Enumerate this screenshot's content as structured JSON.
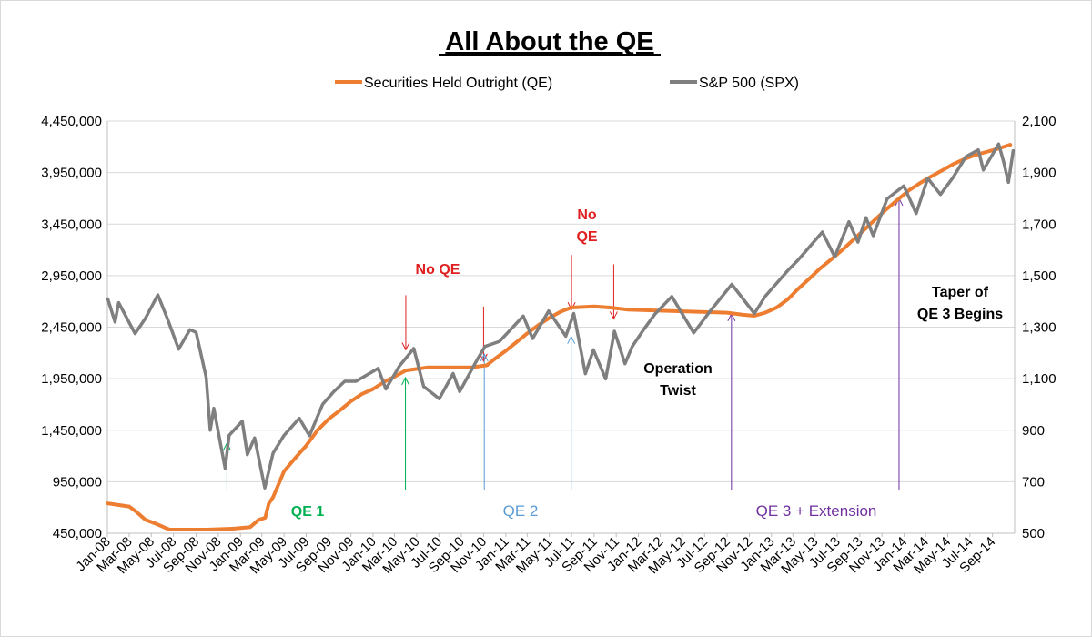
{
  "chart_data": {
    "type": "line",
    "title": "All About the QE",
    "xlabel": "",
    "ylabel": "",
    "y_left_ticks": [
      "450,000",
      "950,000",
      "1,450,000",
      "1,950,000",
      "2,450,000",
      "2,950,000",
      "3,450,000",
      "3,950,000",
      "4,450,000"
    ],
    "y_right_ticks": [
      "500",
      "700",
      "900",
      "1,100",
      "1,300",
      "1,500",
      "1,700",
      "1,900",
      "2,100"
    ],
    "ylim_left": [
      450000,
      4450000
    ],
    "ylim_right": [
      500,
      2100
    ],
    "x_ticks": [
      "Jan-08",
      "Mar-08",
      "May-08",
      "Jul-08",
      "Sep-08",
      "Nov-08",
      "Jan-09",
      "Mar-09",
      "May-09",
      "Jul-09",
      "Sep-09",
      "Nov-09",
      "Jan-10",
      "Mar-10",
      "May-10",
      "Jul-10",
      "Sep-10",
      "Nov-10",
      "Jan-11",
      "Mar-11",
      "May-11",
      "Jul-11",
      "Sep-11",
      "Nov-11",
      "Jan-12",
      "Mar-12",
      "May-12",
      "Jul-12",
      "Sep-12",
      "Nov-12",
      "Jan-13",
      "Mar-13",
      "May-13",
      "Jul-13",
      "Sep-13",
      "Nov-13",
      "Jan-14",
      "Mar-14",
      "May-14",
      "Jul-14",
      "Sep-14"
    ],
    "legend_position": "top",
    "grid": "horizontal",
    "series": [
      {
        "name": "Securities Held Outright (QE)",
        "axis": "left",
        "color": "#ED7D31",
        "points": [
          [
            "2008-01-02",
            740000
          ],
          [
            "2008-03-01",
            710000
          ],
          [
            "2008-03-20",
            660000
          ],
          [
            "2008-04-15",
            580000
          ],
          [
            "2008-05-15",
            540000
          ],
          [
            "2008-06-20",
            485000
          ],
          [
            "2008-10-01",
            485000
          ],
          [
            "2008-12-15",
            495000
          ],
          [
            "2009-01-28",
            510000
          ],
          [
            "2009-02-20",
            580000
          ],
          [
            "2009-03-10",
            600000
          ],
          [
            "2009-03-20",
            740000
          ],
          [
            "2009-04-01",
            800000
          ],
          [
            "2009-05-01",
            1050000
          ],
          [
            "2009-06-01",
            1180000
          ],
          [
            "2009-07-01",
            1300000
          ],
          [
            "2009-08-01",
            1450000
          ],
          [
            "2009-09-01",
            1560000
          ],
          [
            "2009-10-01",
            1640000
          ],
          [
            "2009-11-01",
            1730000
          ],
          [
            "2009-12-01",
            1800000
          ],
          [
            "2010-01-01",
            1850000
          ],
          [
            "2010-02-01",
            1920000
          ],
          [
            "2010-03-01",
            1970000
          ],
          [
            "2010-04-01",
            2030000
          ],
          [
            "2010-06-01",
            2060000
          ],
          [
            "2010-08-01",
            2060000
          ],
          [
            "2010-10-01",
            2060000
          ],
          [
            "2010-11-10",
            2080000
          ],
          [
            "2010-12-01",
            2140000
          ],
          [
            "2011-01-01",
            2220000
          ],
          [
            "2011-02-01",
            2310000
          ],
          [
            "2011-03-01",
            2390000
          ],
          [
            "2011-04-01",
            2470000
          ],
          [
            "2011-05-01",
            2540000
          ],
          [
            "2011-06-01",
            2600000
          ],
          [
            "2011-06-30",
            2640000
          ],
          [
            "2011-09-01",
            2650000
          ],
          [
            "2011-10-15",
            2640000
          ],
          [
            "2011-12-01",
            2620000
          ],
          [
            "2012-03-01",
            2610000
          ],
          [
            "2012-06-01",
            2600000
          ],
          [
            "2012-09-01",
            2590000
          ],
          [
            "2012-10-15",
            2570000
          ],
          [
            "2012-11-15",
            2560000
          ],
          [
            "2012-12-15",
            2590000
          ],
          [
            "2013-01-15",
            2640000
          ],
          [
            "2013-02-15",
            2720000
          ],
          [
            "2013-03-15",
            2820000
          ],
          [
            "2013-04-15",
            2920000
          ],
          [
            "2013-05-15",
            3020000
          ],
          [
            "2013-06-15",
            3110000
          ],
          [
            "2013-07-15",
            3200000
          ],
          [
            "2013-08-15",
            3300000
          ],
          [
            "2013-09-15",
            3400000
          ],
          [
            "2013-10-15",
            3500000
          ],
          [
            "2013-11-15",
            3600000
          ],
          [
            "2013-12-15",
            3690000
          ],
          [
            "2014-01-15",
            3780000
          ],
          [
            "2014-02-15",
            3850000
          ],
          [
            "2014-03-15",
            3910000
          ],
          [
            "2014-04-15",
            3970000
          ],
          [
            "2014-05-15",
            4030000
          ],
          [
            "2014-06-15",
            4080000
          ],
          [
            "2014-07-15",
            4120000
          ],
          [
            "2014-08-15",
            4150000
          ],
          [
            "2014-09-15",
            4180000
          ],
          [
            "2014-10-20",
            4220000
          ]
        ]
      },
      {
        "name": "S&P 500 (SPX)",
        "axis": "right",
        "color": "#7F7F7F",
        "points": [
          [
            "2008-01-02",
            1410
          ],
          [
            "2008-01-22",
            1320
          ],
          [
            "2008-02-01",
            1395
          ],
          [
            "2008-03-17",
            1275
          ],
          [
            "2008-04-15",
            1335
          ],
          [
            "2008-05-19",
            1425
          ],
          [
            "2008-06-15",
            1330
          ],
          [
            "2008-07-15",
            1215
          ],
          [
            "2008-08-15",
            1290
          ],
          [
            "2008-09-01",
            1280
          ],
          [
            "2008-09-29",
            1105
          ],
          [
            "2008-10-10",
            900
          ],
          [
            "2008-10-20",
            985
          ],
          [
            "2008-11-20",
            752
          ],
          [
            "2008-12-01",
            880
          ],
          [
            "2009-01-06",
            935
          ],
          [
            "2009-01-20",
            805
          ],
          [
            "2009-02-09",
            870
          ],
          [
            "2009-03-09",
            676
          ],
          [
            "2009-04-01",
            811
          ],
          [
            "2009-05-01",
            880
          ],
          [
            "2009-06-12",
            946
          ],
          [
            "2009-07-10",
            879
          ],
          [
            "2009-08-15",
            1000
          ],
          [
            "2009-09-15",
            1050
          ],
          [
            "2009-10-15",
            1090
          ],
          [
            "2009-11-15",
            1090
          ],
          [
            "2010-01-15",
            1140
          ],
          [
            "2010-02-05",
            1060
          ],
          [
            "2010-03-15",
            1150
          ],
          [
            "2010-04-23",
            1217
          ],
          [
            "2010-05-20",
            1070
          ],
          [
            "2010-07-02",
            1022
          ],
          [
            "2010-08-09",
            1120
          ],
          [
            "2010-08-27",
            1050
          ],
          [
            "2010-10-15",
            1175
          ],
          [
            "2010-11-05",
            1225
          ],
          [
            "2010-12-15",
            1245
          ],
          [
            "2011-02-18",
            1343
          ],
          [
            "2011-03-16",
            1256
          ],
          [
            "2011-04-29",
            1363
          ],
          [
            "2011-06-15",
            1265
          ],
          [
            "2011-07-07",
            1353
          ],
          [
            "2011-08-08",
            1119
          ],
          [
            "2011-08-30",
            1212
          ],
          [
            "2011-10-03",
            1099
          ],
          [
            "2011-10-27",
            1284
          ],
          [
            "2011-11-25",
            1158
          ],
          [
            "2011-12-15",
            1225
          ],
          [
            "2012-01-15",
            1290
          ],
          [
            "2012-02-15",
            1350
          ],
          [
            "2012-04-02",
            1419
          ],
          [
            "2012-06-01",
            1278
          ],
          [
            "2012-07-15",
            1360
          ],
          [
            "2012-09-14",
            1466
          ],
          [
            "2012-11-15",
            1353
          ],
          [
            "2012-12-15",
            1420
          ],
          [
            "2013-01-15",
            1470
          ],
          [
            "2013-02-15",
            1520
          ],
          [
            "2013-03-15",
            1560
          ],
          [
            "2013-05-21",
            1669
          ],
          [
            "2013-06-24",
            1573
          ],
          [
            "2013-08-02",
            1709
          ],
          [
            "2013-08-27",
            1630
          ],
          [
            "2013-09-18",
            1725
          ],
          [
            "2013-10-08",
            1655
          ],
          [
            "2013-11-15",
            1798
          ],
          [
            "2013-12-31",
            1848
          ],
          [
            "2014-02-03",
            1741
          ],
          [
            "2014-03-07",
            1878
          ],
          [
            "2014-04-11",
            1815
          ],
          [
            "2014-05-15",
            1880
          ],
          [
            "2014-06-20",
            1962
          ],
          [
            "2014-07-24",
            1988
          ],
          [
            "2014-08-07",
            1910
          ],
          [
            "2014-09-18",
            2011
          ],
          [
            "2014-10-01",
            1946
          ],
          [
            "2014-10-15",
            1862
          ],
          [
            "2014-10-28",
            1985
          ]
        ]
      }
    ],
    "annotations": [
      {
        "text": "QE 1",
        "color": "#00B050",
        "markers": [
          {
            "date": "2008-11-25",
            "axis": "right",
            "to": 850,
            "direction": "up",
            "color": "#00B050"
          },
          {
            "date": "2010-03-31",
            "axis": "left",
            "to": 1960000,
            "direction": "up",
            "color": "#00B050"
          }
        ]
      },
      {
        "text": "No QE",
        "color": "#E02020",
        "markers": [
          {
            "date": "2010-04-01",
            "axis": "left",
            "to": 2230000,
            "direction": "down",
            "color": "#E02020"
          },
          {
            "date": "2010-11-01",
            "axis": "left",
            "to": 2120000,
            "direction": "down",
            "color": "#E02020"
          }
        ]
      },
      {
        "text": "QE 2",
        "color": "#5B9BD5",
        "markers": [
          {
            "date": "2010-11-03",
            "axis": "left",
            "to": 2190000,
            "direction": "up",
            "color": "#5B9BD5"
          },
          {
            "date": "2011-06-30",
            "axis": "left",
            "to": 2360000,
            "direction": "up",
            "color": "#5B9BD5"
          }
        ]
      },
      {
        "lines": [
          "No",
          "QE"
        ],
        "color": "#E02020",
        "markers": [
          {
            "date": "2011-07-01",
            "axis": "left",
            "to": 2620000,
            "direction": "down",
            "color": "#E02020"
          },
          {
            "date": "2011-10-25",
            "axis": "left",
            "to": 2530000,
            "direction": "down",
            "color": "#E02020"
          }
        ]
      },
      {
        "lines": [
          "Operation",
          "Twist"
        ],
        "color": "#000000",
        "markers": []
      },
      {
        "text": "QE 3 + Extension",
        "color": "#7030A0",
        "markers": [
          {
            "date": "2012-09-13",
            "axis": "left",
            "to": 2580000,
            "direction": "up",
            "color": "#7030A0"
          },
          {
            "date": "2013-12-18",
            "axis": "left",
            "to": 3700000,
            "direction": "up",
            "color": "#7030A0"
          }
        ]
      },
      {
        "lines": [
          "Taper of",
          "QE 3 Begins"
        ],
        "color": "#000000",
        "markers": []
      }
    ]
  }
}
